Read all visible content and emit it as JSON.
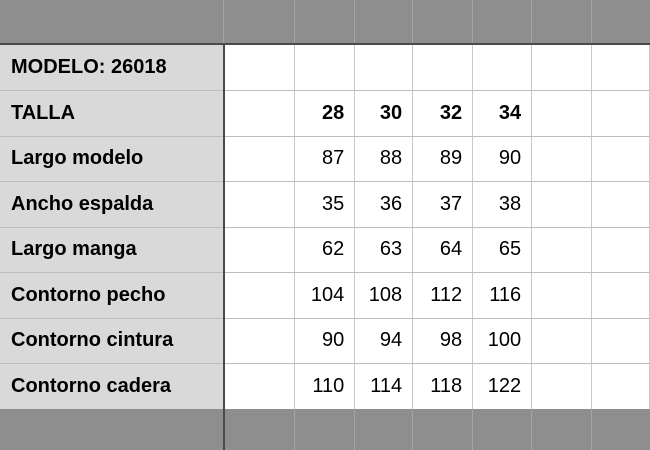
{
  "title_label": "MODELO: 26018",
  "header": {
    "label": "TALLA",
    "values": [
      "28",
      "30",
      "32",
      "34"
    ]
  },
  "rows": [
    {
      "label": "Largo modelo",
      "values": [
        "87",
        "88",
        "89",
        "90"
      ]
    },
    {
      "label": "Ancho espalda",
      "values": [
        "35",
        "36",
        "37",
        "38"
      ]
    },
    {
      "label": "Largo manga",
      "values": [
        "62",
        "63",
        "64",
        "65"
      ]
    },
    {
      "label": "Contorno pecho",
      "values": [
        "104",
        "108",
        "112",
        "116"
      ]
    },
    {
      "label": "Contorno cintura",
      "values": [
        "90",
        "94",
        "98",
        "100"
      ]
    },
    {
      "label": "Contorno cadera",
      "values": [
        "110",
        "114",
        "118",
        "122"
      ]
    }
  ],
  "colors": {
    "band": "#8e8e8e",
    "label_bg": "#d9d9d9"
  }
}
